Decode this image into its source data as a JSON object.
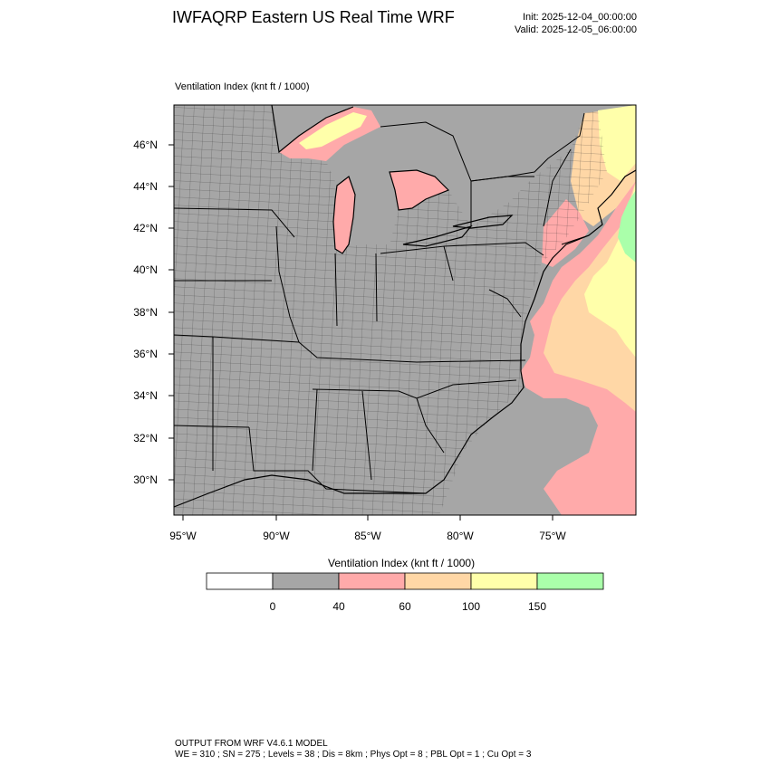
{
  "header": {
    "title": "IWFAQRP Eastern US Real Time WRF",
    "init": "Init: 2025-12-04_00:00:00",
    "valid": "Valid: 2025-12-05_06:00:00"
  },
  "field": {
    "label": "Ventilation Index   (knt ft / 1000)"
  },
  "map": {
    "lat_labels": [
      "46°N",
      "44°N",
      "42°N",
      "40°N",
      "38°N",
      "36°N",
      "34°N",
      "32°N",
      "30°N"
    ],
    "lon_labels": [
      "95°W",
      "90°W",
      "85°W",
      "80°W",
      "75°W"
    ],
    "land_color": "#a6a6a6",
    "water_color": "#a6a6a6"
  },
  "colorbar": {
    "title": "Ventilation Index  (knt ft / 1000)",
    "ticks": [
      "0",
      "40",
      "60",
      "100",
      "150"
    ],
    "bins": [
      {
        "color": "#ffffff"
      },
      {
        "color": "#a6a6a6"
      },
      {
        "color": "#ffaaaa"
      },
      {
        "color": "#ffd7a6"
      },
      {
        "color": "#ffffaa"
      },
      {
        "color": "#aaffaa"
      }
    ]
  },
  "footer": {
    "line1": "OUTPUT FROM WRF V4.6.1 MODEL",
    "line2": "WE = 310 ; SN = 275 ; Levels = 38 ; Dis = 8km ; Phys Opt = 8 ; PBL Opt = 1 ; Cu Opt = 3"
  }
}
